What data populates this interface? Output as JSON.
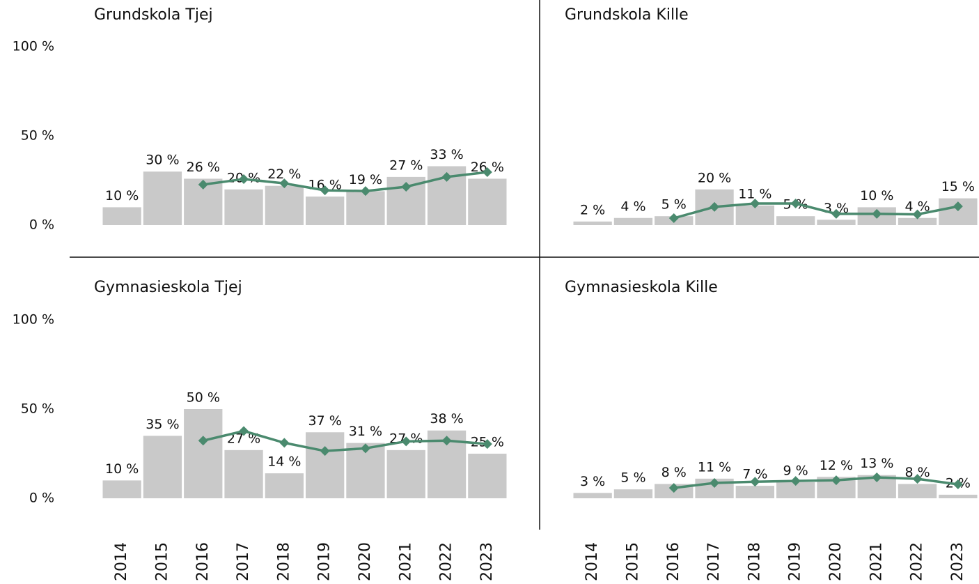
{
  "chart_data": [
    {
      "type": "bar",
      "title": "Grundskola Tjej",
      "ylim": [
        0,
        100
      ],
      "yticks": [
        {
          "value": 0,
          "label": "0 %"
        },
        {
          "value": 50,
          "label": "50 %"
        },
        {
          "value": 100,
          "label": "100 %"
        }
      ],
      "series": [
        {
          "type": "bar",
          "color": "#c9c9c9",
          "values": [
            10,
            30,
            26,
            20,
            22,
            16,
            19,
            27,
            33,
            26
          ],
          "value_labels": [
            "10 %",
            "30 %",
            "26 %",
            "20 %",
            "22 %",
            "16 %",
            "19 %",
            "27 %",
            "33 %",
            "26 %"
          ]
        },
        {
          "type": "line",
          "color": "#4a8a6e",
          "values": [
            null,
            null,
            22.7,
            25.8,
            23.4,
            19.5,
            19.1,
            21.5,
            27,
            29.7
          ]
        }
      ]
    },
    {
      "type": "bar",
      "title": "Grundskola Kille",
      "ylim": [
        0,
        100
      ],
      "series": [
        {
          "type": "bar",
          "color": "#c9c9c9",
          "values": [
            2,
            4,
            5,
            20,
            11,
            5,
            3,
            10,
            4,
            15
          ],
          "value_labels": [
            "2 %",
            "4 %",
            "5 %",
            "20 %",
            "11 %",
            "5 %",
            "3 %",
            "10 %",
            "4 %",
            "15 %"
          ]
        },
        {
          "type": "line",
          "color": "#4a8a6e",
          "values": [
            null,
            null,
            3.9,
            10.2,
            12.1,
            12.1,
            6.3,
            6.3,
            6,
            10.5
          ]
        }
      ]
    },
    {
      "type": "bar",
      "title": "Gymnasieskola Tjej",
      "ylim": [
        0,
        100
      ],
      "yticks": [
        {
          "value": 0,
          "label": "0 %"
        },
        {
          "value": 50,
          "label": "50 %"
        },
        {
          "value": 100,
          "label": "100 %"
        }
      ],
      "categories": [
        "2014",
        "2015",
        "2016",
        "2017",
        "2018",
        "2019",
        "2020",
        "2021",
        "2022",
        "2023"
      ],
      "series": [
        {
          "type": "bar",
          "color": "#c9c9c9",
          "values": [
            10,
            35,
            50,
            27,
            14,
            37,
            31,
            27,
            38,
            25
          ],
          "value_labels": [
            "10 %",
            "35 %",
            "50 %",
            "27 %",
            "14 %",
            "37 %",
            "31 %",
            "27 %",
            "38 %",
            "25 %"
          ]
        },
        {
          "type": "line",
          "color": "#4a8a6e",
          "values": [
            null,
            null,
            32.3,
            37.7,
            31.1,
            26.5,
            28,
            31.9,
            32.3,
            30.4
          ]
        }
      ]
    },
    {
      "type": "bar",
      "title": "Gymnasieskola Kille",
      "ylim": [
        0,
        100
      ],
      "categories": [
        "2014",
        "2015",
        "2016",
        "2017",
        "2018",
        "2019",
        "2020",
        "2021",
        "2022",
        "2023"
      ],
      "series": [
        {
          "type": "bar",
          "color": "#c9c9c9",
          "values": [
            3,
            5,
            8,
            11,
            7,
            9,
            12,
            13,
            8,
            2
          ],
          "value_labels": [
            "3 %",
            "5 %",
            "8 %",
            "11 %",
            "7 %",
            "9 %",
            "12 %",
            "13 %",
            "8 %",
            "2 %"
          ]
        },
        {
          "type": "line",
          "color": "#4a8a6e",
          "values": [
            null,
            null,
            5.8,
            8.6,
            9.3,
            9.7,
            10.1,
            11.7,
            10.9,
            7.8
          ]
        }
      ]
    }
  ]
}
